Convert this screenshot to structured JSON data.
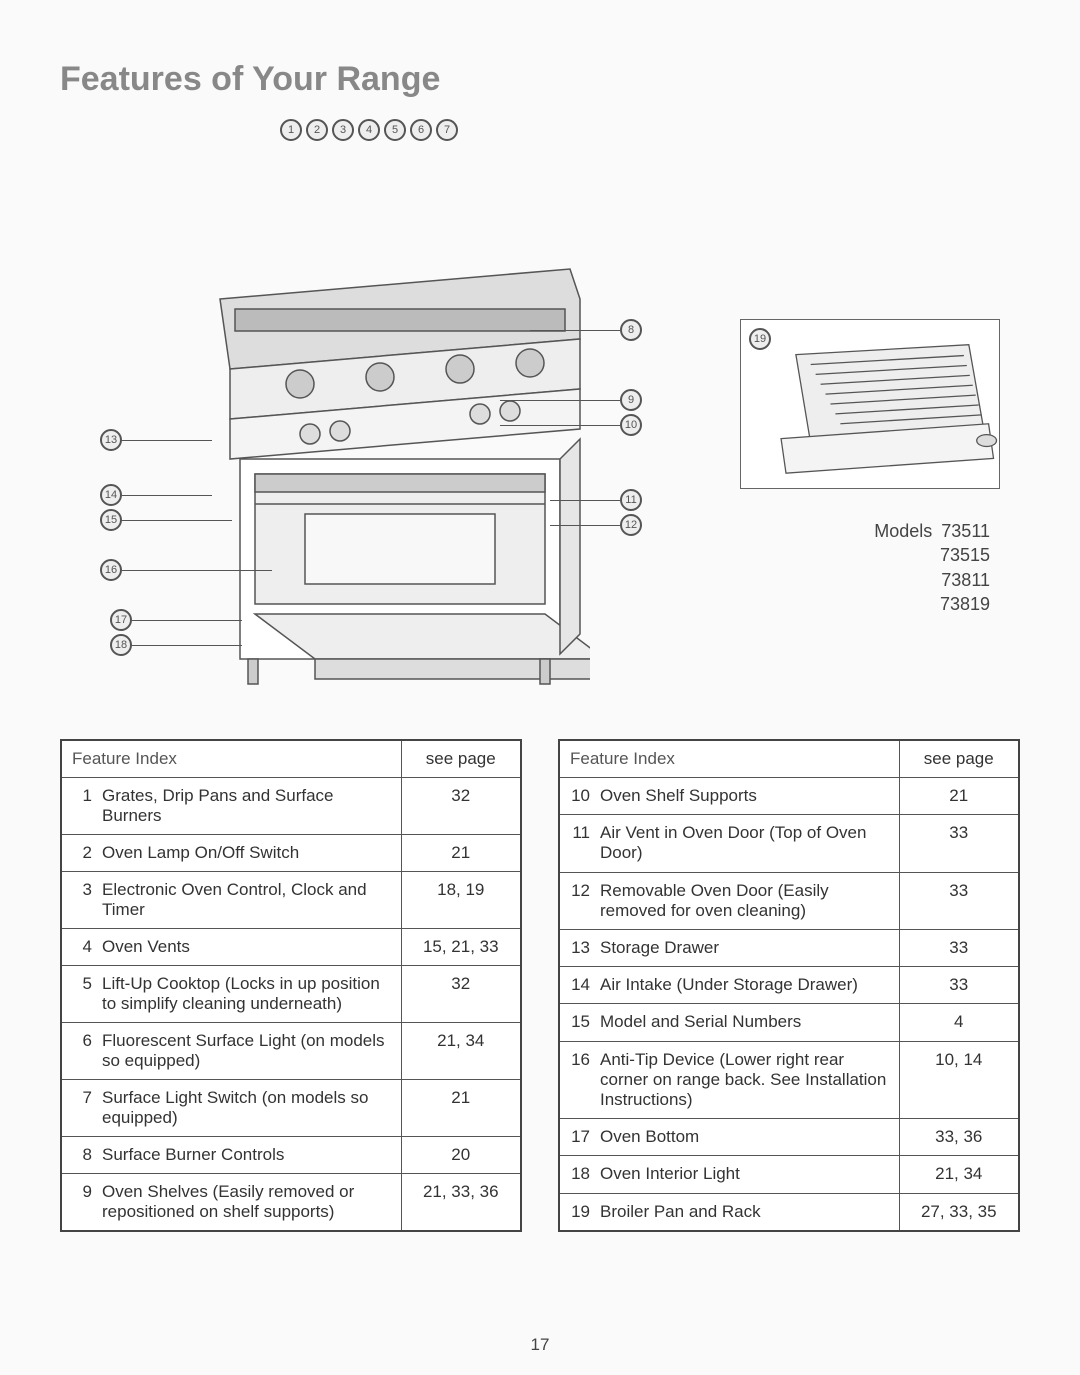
{
  "title": "Features of Your Range",
  "models_label": "Models",
  "models": [
    "73511",
    "73515",
    "73811",
    "73819"
  ],
  "page_number": "17",
  "tables": {
    "header_feature": "Feature Index",
    "header_page": "see page",
    "left": [
      {
        "n": "1",
        "label": "Grates, Drip Pans and Surface Burners",
        "page": "32"
      },
      {
        "n": "2",
        "label": "Oven Lamp On/Off Switch",
        "page": "21"
      },
      {
        "n": "3",
        "label": "Electronic Oven Control, Clock and Timer",
        "page": "18, 19"
      },
      {
        "n": "4",
        "label": "Oven Vents",
        "page": "15, 21, 33"
      },
      {
        "n": "5",
        "label": "Lift-Up Cooktop (Locks in up position to simplify cleaning underneath)",
        "page": "32"
      },
      {
        "n": "6",
        "label": "Fluorescent Surface Light (on models so equipped)",
        "page": "21, 34"
      },
      {
        "n": "7",
        "label": "Surface Light Switch (on models so equipped)",
        "page": "21"
      },
      {
        "n": "8",
        "label": "Surface Burner Controls",
        "page": "20"
      },
      {
        "n": "9",
        "label": "Oven Shelves (Easily removed or repositioned on shelf supports)",
        "page": "21, 33, 36"
      }
    ],
    "right": [
      {
        "n": "10",
        "label": "Oven Shelf Supports",
        "page": "21"
      },
      {
        "n": "11",
        "label": "Air Vent in Oven Door (Top of Oven Door)",
        "page": "33"
      },
      {
        "n": "12",
        "label": "Removable Oven Door (Easily removed for oven cleaning)",
        "page": "33"
      },
      {
        "n": "13",
        "label": "Storage Drawer",
        "page": "33"
      },
      {
        "n": "14",
        "label": "Air Intake (Under Storage Drawer)",
        "page": "33"
      },
      {
        "n": "15",
        "label": "Model and Serial Numbers",
        "page": "4"
      },
      {
        "n": "16",
        "label": "Anti-Tip Device (Lower right rear corner on range back. See Installation Instructions)",
        "page": "10, 14"
      },
      {
        "n": "17",
        "label": "Oven Bottom",
        "page": "33, 36"
      },
      {
        "n": "18",
        "label": "Oven Interior Light",
        "page": "21, 34"
      },
      {
        "n": "19",
        "label": "Broiler Pan and Rack",
        "page": "27, 33, 35"
      }
    ]
  },
  "diagram": {
    "top_callouts": [
      "1",
      "2",
      "3",
      "4",
      "5",
      "6",
      "7"
    ],
    "right_side": [
      "8",
      "9",
      "10",
      "11",
      "12"
    ],
    "left_side": [
      "13",
      "14",
      "15",
      "16",
      "17",
      "18"
    ],
    "broiler_callout": "19"
  },
  "colors": {
    "text": "#333333",
    "muted": "#888888",
    "border": "#555555",
    "background": "#fafafa"
  }
}
